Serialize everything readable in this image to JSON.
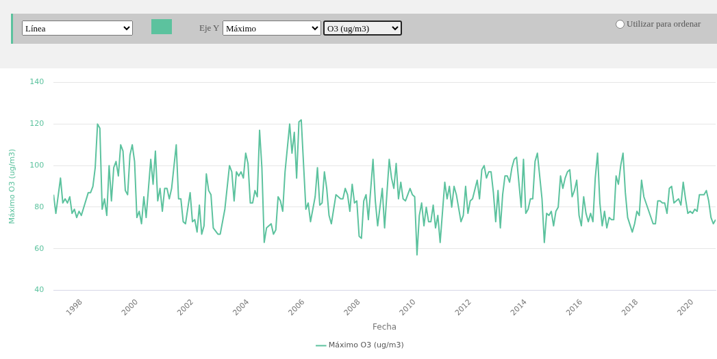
{
  "chart_data": {
    "type": "line",
    "xlabel": "Fecha",
    "ylabel": "Máximo O3 (ug/m3)",
    "annotations": [
      "Línea",
      "Eje Y",
      "Máximo",
      "O3 (ug/m3)",
      "Utilizar para ordenar"
    ],
    "xlim": [
      "1997-01",
      "2020-11"
    ],
    "xticks": [
      {
        "value": "1998",
        "label": "1998"
      },
      {
        "value": "2000",
        "label": "2000"
      },
      {
        "value": "2002",
        "label": "2002"
      },
      {
        "value": "2004",
        "label": "2004"
      },
      {
        "value": "2006",
        "label": "2006"
      },
      {
        "value": "2008",
        "label": "2008"
      },
      {
        "value": "2010",
        "label": "2010"
      },
      {
        "value": "2012",
        "label": "2012"
      },
      {
        "value": "2014",
        "label": "2014"
      },
      {
        "value": "2016",
        "label": "2016"
      },
      {
        "value": "2018",
        "label": "2018"
      },
      {
        "value": "2020",
        "label": "2020"
      }
    ],
    "ylim": [
      40,
      140
    ],
    "yticks": [
      40,
      60,
      80,
      100,
      120,
      140
    ],
    "grid": "y",
    "legend": "bottom",
    "marker": "none",
    "line_style": "solid",
    "series": [
      {
        "name": "Máximo O3 (ug/m3)",
        "color": "#5cc29e",
        "x": [
          "1997-01",
          "1997-02",
          "1997-04",
          "1997-05",
          "1997-06",
          "1997-07",
          "1997-08",
          "1997-09",
          "1997-10",
          "1997-11",
          "1997-12",
          "1998-01",
          "1998-04",
          "1998-05",
          "1998-06",
          "1998-07",
          "1998-08",
          "1998-09",
          "1998-10",
          "1998-11",
          "1998-12",
          "1999-01",
          "1999-02",
          "1999-03",
          "1999-04",
          "1999-05",
          "1999-06",
          "1999-07",
          "1999-08",
          "1999-09",
          "1999-10",
          "1999-11",
          "1999-12",
          "2000-01",
          "2000-02",
          "2000-03",
          "2000-04",
          "2000-05",
          "2000-07",
          "2000-08",
          "2000-09",
          "2000-10",
          "2000-11",
          "2000-12",
          "2001-01",
          "2001-02",
          "2001-03",
          "2001-04",
          "2001-06",
          "2001-07",
          "2001-08",
          "2001-09",
          "2001-10",
          "2001-12",
          "2002-01",
          "2002-02",
          "2002-03",
          "2002-04",
          "2002-05",
          "2002-06",
          "2002-07",
          "2002-08",
          "2002-09",
          "2002-10",
          "2002-12",
          "2003-01",
          "2003-03",
          "2003-05",
          "2003-06",
          "2003-07",
          "2003-08",
          "2003-09",
          "2003-10",
          "2003-11",
          "2003-12",
          "2004-01",
          "2004-02",
          "2004-03",
          "2004-04",
          "2004-05",
          "2004-06",
          "2004-07",
          "2004-08",
          "2004-09",
          "2004-10",
          "2004-11",
          "2004-12",
          "2005-01",
          "2005-02",
          "2005-03",
          "2005-04",
          "2005-05",
          "2005-07",
          "2005-08",
          "2005-09",
          "2005-10",
          "2005-11",
          "2005-12",
          "2006-02",
          "2006-03",
          "2006-04",
          "2006-06",
          "2006-07",
          "2006-08",
          "2006-09",
          "2006-10",
          "2006-11",
          "2006-12",
          "2007-01",
          "2007-03",
          "2007-05",
          "2007-06",
          "2007-07",
          "2007-08",
          "2007-09",
          "2007-10",
          "2007-11",
          "2007-12",
          "2008-01",
          "2008-02",
          "2008-03",
          "2008-04",
          "2008-05",
          "2008-07",
          "2008-08",
          "2008-09",
          "2008-11",
          "2008-12",
          "2009-02",
          "2009-03",
          "2009-04",
          "2009-05",
          "2009-06",
          "2009-07",
          "2009-08",
          "2009-09",
          "2009-11",
          "2009-12",
          "2010-01",
          "2010-02",
          "2010-03",
          "2010-04",
          "2010-05",
          "2010-06",
          "2010-07",
          "2010-08",
          "2010-09",
          "2010-10",
          "2010-11",
          "2010-12",
          "2011-02",
          "2011-03",
          "2011-04",
          "2011-05",
          "2011-06",
          "2011-07",
          "2011-09",
          "2011-10",
          "2011-11",
          "2011-12",
          "2012-01",
          "2012-02",
          "2012-04",
          "2012-05",
          "2012-06",
          "2012-07",
          "2012-08",
          "2012-09",
          "2012-10",
          "2012-11",
          "2012-12",
          "2013-01",
          "2013-02",
          "2013-03",
          "2013-04",
          "2013-05",
          "2013-06",
          "2013-07",
          "2013-08",
          "2013-09",
          "2013-11",
          "2013-12",
          "2014-01",
          "2014-02",
          "2014-03",
          "2014-04",
          "2014-05",
          "2014-06",
          "2014-08",
          "2014-09",
          "2014-10",
          "2014-11",
          "2014-12",
          "2015-01",
          "2015-02",
          "2015-03",
          "2015-04",
          "2015-05",
          "2015-06",
          "2015-07",
          "2015-08",
          "2015-09",
          "2015-10",
          "2015-11",
          "2015-12",
          "2016-01",
          "2016-02",
          "2016-03",
          "2016-04",
          "2016-05",
          "2016-06",
          "2016-07",
          "2016-08",
          "2016-09",
          "2016-10",
          "2016-11",
          "2016-12",
          "2017-01",
          "2017-02",
          "2017-03",
          "2017-04",
          "2017-05",
          "2017-06",
          "2017-07",
          "2017-08",
          "2017-09",
          "2017-11",
          "2017-12",
          "2018-01",
          "2018-02",
          "2018-03",
          "2018-04",
          "2018-08",
          "2018-09",
          "2018-10",
          "2018-11",
          "2018-12",
          "2019-01",
          "2019-02",
          "2019-03",
          "2019-04",
          "2019-05",
          "2019-06",
          "2019-07",
          "2019-08",
          "2019-09",
          "2019-10",
          "2019-11",
          "2019-12",
          "2020-01",
          "2020-02",
          "2020-03",
          "2020-04",
          "2020-05",
          "2020-06",
          "2020-07",
          "2020-08",
          "2020-09",
          "2020-10",
          "2020-11"
        ],
        "values": [
          86,
          77,
          94,
          82,
          84,
          82,
          85,
          77,
          79,
          75,
          78,
          76,
          87,
          87,
          90,
          99,
          120,
          118,
          79,
          84,
          76,
          100,
          83,
          99,
          102,
          95,
          110,
          107,
          88,
          86,
          105,
          110,
          102,
          75,
          78,
          72,
          85,
          75,
          103,
          91,
          107,
          83,
          89,
          78,
          89,
          89,
          84,
          89,
          110,
          84,
          84,
          73,
          72,
          87,
          73,
          74,
          68,
          81,
          67,
          71,
          96,
          88,
          86,
          70,
          67,
          67,
          79,
          100,
          97,
          83,
          97,
          95,
          97,
          94,
          106,
          101,
          82,
          82,
          88,
          85,
          117,
          99,
          63,
          70,
          71,
          72,
          67,
          69,
          85,
          83,
          78,
          97,
          120,
          106,
          116,
          94,
          121,
          122,
          79,
          82,
          73,
          85,
          99,
          81,
          82,
          97,
          89,
          76,
          72,
          86,
          84,
          84,
          89,
          86,
          78,
          91,
          82,
          83,
          66,
          65,
          83,
          86,
          74,
          103,
          83,
          71,
          89,
          70,
          103,
          94,
          89,
          101,
          84,
          92,
          84,
          83,
          89,
          86,
          85,
          57,
          76,
          82,
          71,
          80,
          73,
          73,
          81,
          70,
          76,
          63,
          92,
          84,
          90,
          80,
          90,
          86,
          73,
          76,
          90,
          77,
          83,
          84,
          93,
          84,
          98,
          100,
          94,
          97,
          97,
          87,
          73,
          88,
          70,
          86,
          95,
          95,
          92,
          99,
          103,
          104,
          80,
          103,
          77,
          79,
          84,
          84,
          102,
          106,
          84,
          63,
          77,
          76,
          78,
          71,
          78,
          80,
          95,
          89,
          94,
          97,
          98,
          85,
          88,
          93,
          76,
          71,
          85,
          77,
          73,
          77,
          73,
          94,
          106,
          82,
          71,
          78,
          70,
          75,
          74,
          74,
          95,
          91,
          100,
          106,
          87,
          75,
          68,
          72,
          78,
          76,
          93,
          85,
          72,
          72,
          83,
          83,
          82,
          82,
          77,
          89,
          90,
          82,
          83,
          84,
          81,
          92,
          84,
          77,
          78,
          77,
          79,
          78,
          86,
          86,
          86,
          88,
          83,
          75,
          72,
          74
        ]
      }
    ]
  }
}
